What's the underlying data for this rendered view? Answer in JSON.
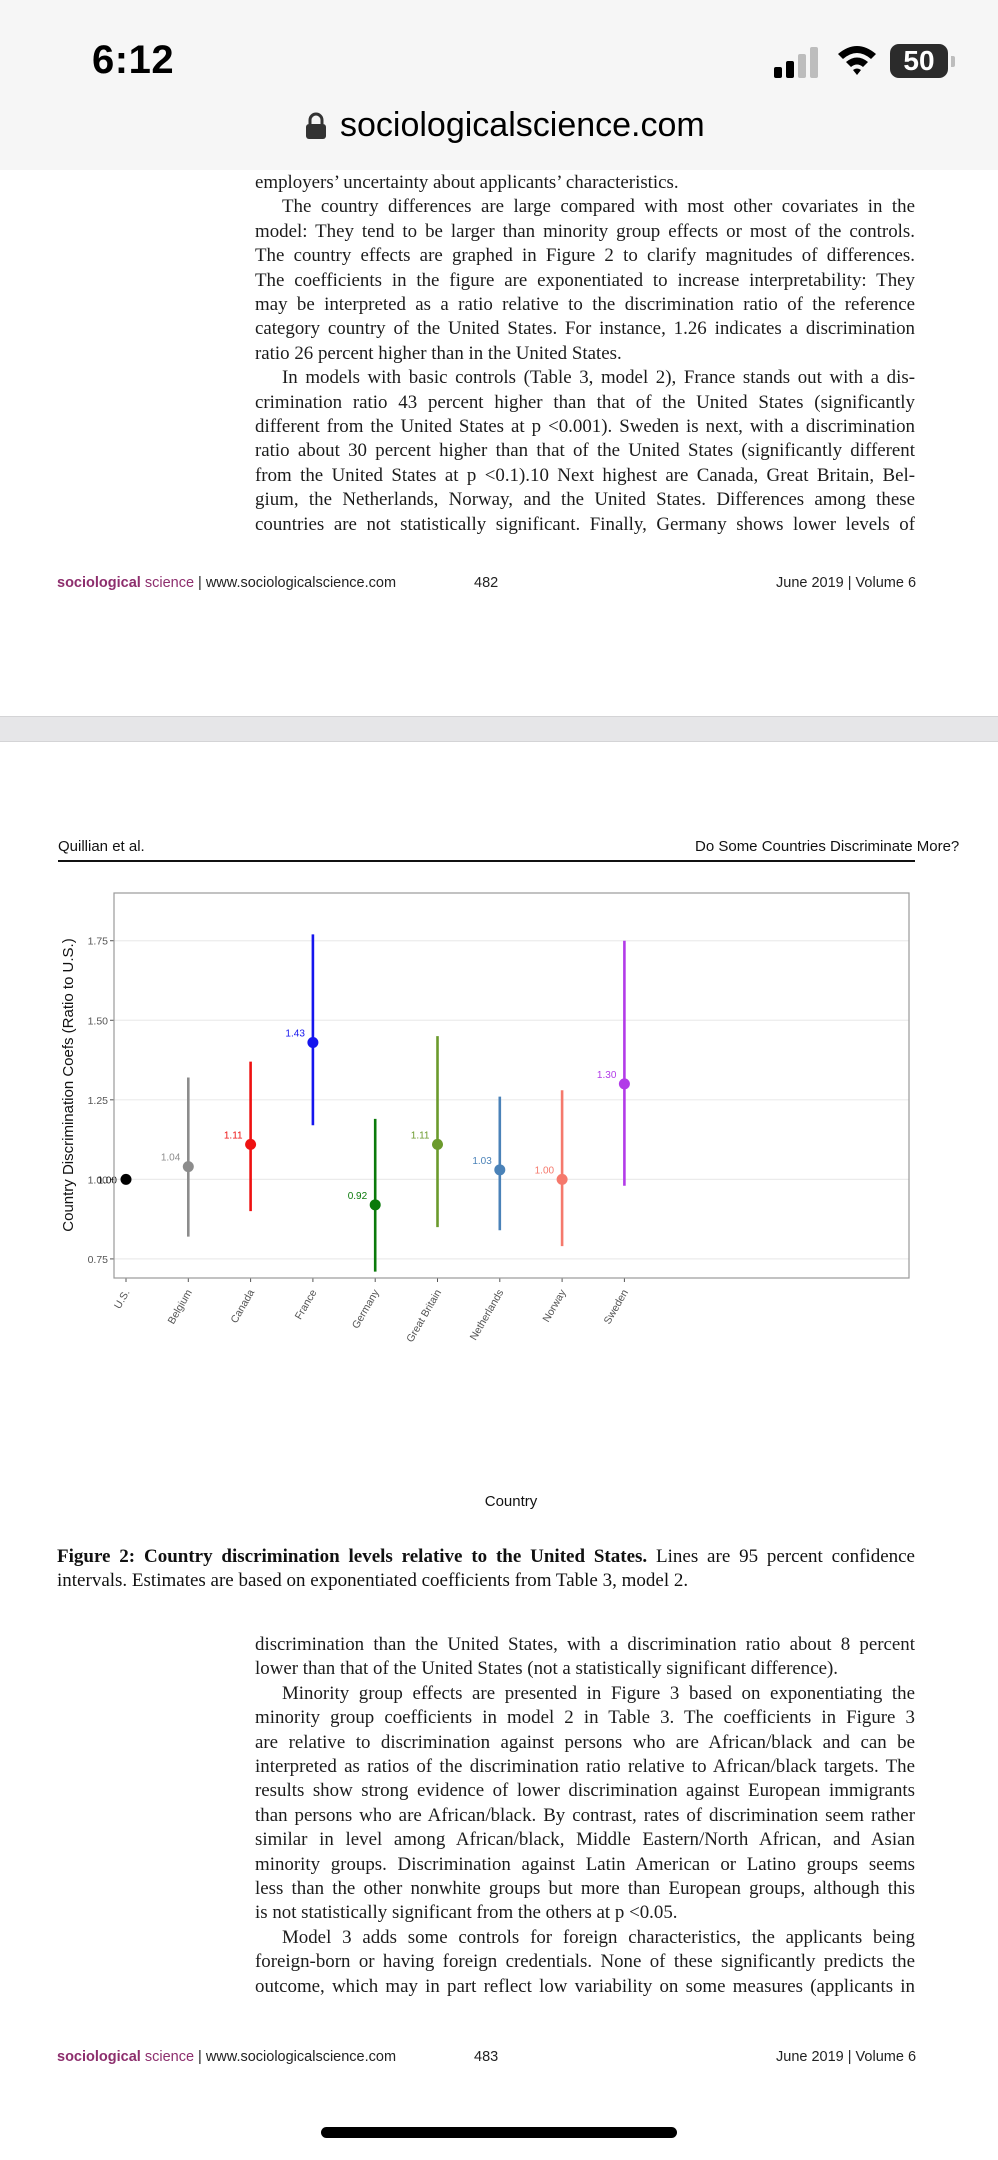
{
  "status_bar": {
    "time": "6:12",
    "battery": "50"
  },
  "browser": {
    "url": "sociologicalscience.com"
  },
  "page1": {
    "lines": [
      "employers’ uncertainty about applicants’ characteristics.",
      "The country differences are large compared with most other covariates in the",
      "model: They tend to be larger than minority group effects or most of the controls.",
      "The country effects are graphed in Figure 2 to clarify magnitudes of differences.",
      "The coefficients in the figure are exponentiated to increase interpretability: They",
      "may be interpreted as a ratio relative to the discrimination ratio of the reference",
      "category country of the United States. For instance, 1.26 indicates a discrimination",
      "ratio 26 percent higher than in the United States.",
      "In models with basic controls (Table 3, model 2), France stands out with a dis-",
      "crimination ratio 43 percent higher than that of the United States (significantly",
      "different from the United States at p <0.001). Sweden is next, with a discrimination",
      "ratio about 30 percent higher than that of the United States (significantly different",
      "from the United States at p <0.1).10 Next highest are Canada, Great Britain, Bel-",
      "gium, the Netherlands, Norway, and the United States. Differences among these",
      "countries are not statistically significant. Finally, Germany shows lower levels of"
    ],
    "footer": {
      "brand_bold": "sociological",
      "brand_rest": " science",
      "site": " | www.sociologicalscience.com",
      "page": "482",
      "date": "June 2019 | Volume 6"
    }
  },
  "page2": {
    "header_left": "Quillian et al.",
    "header_right": "Do Some Countries Discriminate More?",
    "caption_bold": "Figure 2: Country discrimination levels relative to the United States.",
    "caption_rest": " Lines are 95 percent confidence intervals. Estimates are based on exponentiated coefficients from Table 3, model 2.",
    "lines": [
      "discrimination than the United States, with a discrimination ratio about 8 percent",
      "lower than that of the United States (not a statistically significant difference).",
      "Minority group effects are presented in Figure 3 based on exponentiating the",
      "minority group coefficients in model 2 in Table 3. The coefficients in Figure 3",
      "are relative to discrimination against persons who are African/black and can be",
      "interpreted as ratios of the discrimination ratio relative to African/black targets. The",
      "results show strong evidence of lower discrimination against European immigrants",
      "than persons who are African/black. By contrast, rates of discrimination seem rather",
      "similar in level among African/black, Middle Eastern/North African, and Asian",
      "minority groups. Discrimination against Latin American or Latino groups seems",
      "less than the other nonwhite groups but more than European groups, although this",
      "is not statistically significant from the others at p <0.05.",
      "Model 3 adds some controls for foreign characteristics, the applicants being",
      "foreign-born or having foreign credentials. None of these significantly predicts the",
      "outcome, which may in part reflect low variability on some measures (applicants in"
    ],
    "footer": {
      "brand_bold": "sociological",
      "brand_rest": " science",
      "site": " | www.sociologicalscience.com",
      "page": "483",
      "date": "June 2019 | Volume 6"
    }
  },
  "chart_data": {
    "type": "scatter",
    "xlabel": "Country",
    "ylabel": "Country Discrimination Coefs (Ratio to U.S.)",
    "ylim": [
      0.69,
      1.9
    ],
    "yticks": [
      "0.75",
      "1.00",
      "1.25",
      "1.50",
      "1.75"
    ],
    "grid": true,
    "categories": [
      "U.S.",
      "Belgium",
      "Canada",
      "France",
      "Germany",
      "Great Britain",
      "Netherlands",
      "Norway",
      "Sweden"
    ],
    "points": [
      {
        "country": "U.S.",
        "value": 1.0,
        "label": "1.00",
        "lower": null,
        "upper": null,
        "color": "#000000"
      },
      {
        "country": "Belgium",
        "value": 1.04,
        "label": "1.04",
        "lower": 0.82,
        "upper": 1.32,
        "color": "#8c8c8c"
      },
      {
        "country": "Canada",
        "value": 1.11,
        "label": "1.11",
        "lower": 0.9,
        "upper": 1.37,
        "color": "#ee1111"
      },
      {
        "country": "France",
        "value": 1.43,
        "label": "1.43",
        "lower": 1.17,
        "upper": 1.77,
        "color": "#1515ee"
      },
      {
        "country": "Germany",
        "value": 0.92,
        "label": "0.92",
        "lower": 0.71,
        "upper": 1.19,
        "color": "#0a7a0a"
      },
      {
        "country": "Great Britain",
        "value": 1.11,
        "label": "1.11",
        "lower": 0.85,
        "upper": 1.45,
        "color": "#6b9a2c"
      },
      {
        "country": "Netherlands",
        "value": 1.03,
        "label": "1.03",
        "lower": 0.84,
        "upper": 1.26,
        "color": "#4a82b8"
      },
      {
        "country": "Norway",
        "value": 1.0,
        "label": "1.00",
        "lower": 0.79,
        "upper": 1.28,
        "color": "#f5796c"
      },
      {
        "country": "Sweden",
        "value": 1.3,
        "label": "1.30",
        "lower": 0.98,
        "upper": 1.75,
        "color": "#b23be8"
      }
    ]
  }
}
